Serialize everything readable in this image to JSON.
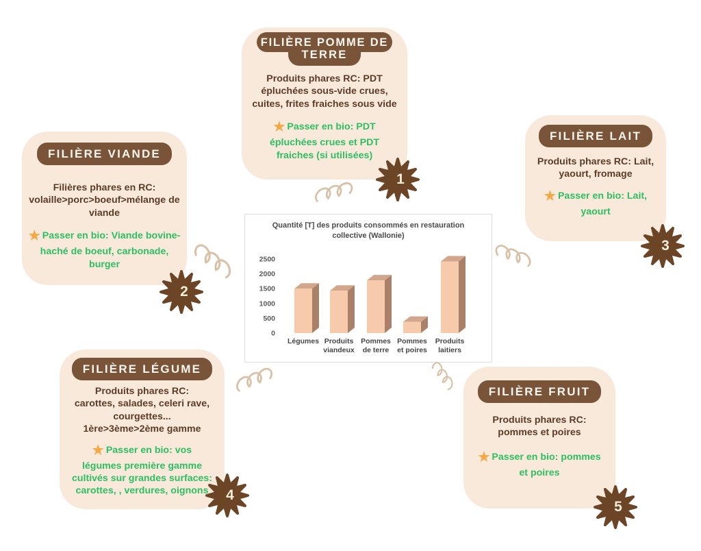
{
  "colors": {
    "card_bg": "#f8e9da",
    "title_pill": "#7a5438",
    "body_text": "#5d3b26",
    "bio_green": "#2ebf62",
    "star_orange": "#f6a844",
    "flower_brown": "#6b4526",
    "squiggle_tan": "#d8c1a6",
    "bar_front": "#f7caab",
    "bar_side": "#aa8068",
    "bar_top": "#d2a68c"
  },
  "glyphs": {
    "star": "★"
  },
  "cards": [
    {
      "id": "pomme-de-terre",
      "title_line1": "FILIÈRE POMME DE",
      "title_line2": "TERRE",
      "body": "Produits phares RC: PDT\népluchées sous-vide crues,\ncuites, frites fraiches sous vide",
      "bio": "Passer en bio: PDT\népluchées crues et PDT\nfraiches (si utilisées)",
      "badge": "1"
    },
    {
      "id": "viande",
      "title": "FILIÈRE VIANDE",
      "body": "Filières phares en RC:\nvolaille>porc>boeuf>mélange de\nviande",
      "bio": "Passer en bio: Viande bovine-\nhaché de boeuf, carbonade,\nburger",
      "badge": "2"
    },
    {
      "id": "lait",
      "title": "FILIÈRE LAIT",
      "body": "Produits phares RC: Lait,\nyaourt, fromage",
      "bio": "Passer en bio: Lait,\nyaourt",
      "badge": "3"
    },
    {
      "id": "legume",
      "title": "FILIÈRE LÉGUME",
      "body": "Produits phares RC:\ncarottes, salades, celeri rave,\ncourgettes...\n1ère>3ème>2ème gamme",
      "bio": "Passer en bio: vos\nlégumes première gamme\ncultivés sur grandes surfaces:\ncarottes, , verdures, oignons",
      "badge": "4"
    },
    {
      "id": "fruit",
      "title": "FILIÈRE FRUIT",
      "body": "Produits phares RC:\npommes et poires",
      "bio": "Passer en bio: pommes\net poires",
      "badge": "5"
    }
  ],
  "chart_data": {
    "type": "bar",
    "style": "3d-bar",
    "title": "Quantité [T] des produits consommés en restauration\ncollective (Wallonie)",
    "categories": [
      "Légumes",
      "Produits viandeux",
      "Pommes de terre",
      "Pommes et poires",
      "Produits laitiers"
    ],
    "label_lines": [
      [
        "Légumes"
      ],
      [
        "Produits",
        "viandeux"
      ],
      [
        "Pommes",
        "de terre"
      ],
      [
        "Pommes",
        "et poires"
      ],
      [
        "Produits",
        "laitiers"
      ]
    ],
    "values": [
      1500,
      1430,
      1780,
      380,
      2420
    ],
    "xlabel": "",
    "ylabel": "",
    "ylim": [
      0,
      2500
    ],
    "yticks": [
      0,
      500,
      1000,
      1500,
      2000,
      2500
    ],
    "grid": false,
    "legend": false
  }
}
